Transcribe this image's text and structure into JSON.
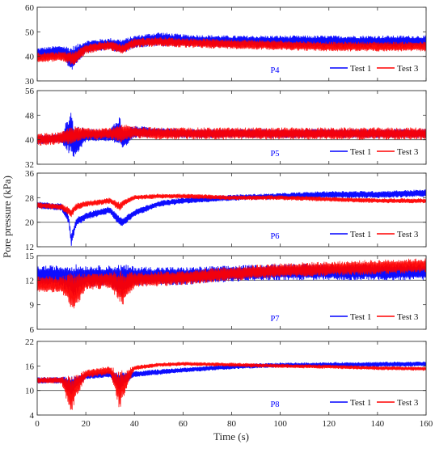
{
  "chart_data": [
    {
      "type": "line",
      "panel_label": "P4",
      "ylim": [
        30,
        60
      ],
      "yticks": [
        "30",
        "40",
        "50",
        "60"
      ],
      "reference_y": 40,
      "legend": [
        "Test 1",
        "Test 3"
      ],
      "legend_placement": "bottom-right",
      "series": [
        {
          "name": "Test 1",
          "color": "#0000ff",
          "x": [
            0,
            10,
            14,
            20,
            30,
            35,
            40,
            50,
            60,
            80,
            100,
            120,
            140,
            160
          ],
          "values": [
            41,
            42,
            39,
            44,
            45,
            44,
            46,
            47,
            46.5,
            46,
            46,
            46,
            46,
            46
          ],
          "band": [
            2.5,
            2.5,
            5,
            2.5,
            2.5,
            3,
            2.5,
            3,
            2.5,
            2.5,
            2.5,
            2.5,
            2.5,
            2.5
          ]
        },
        {
          "name": "Test 3",
          "color": "#ff0000",
          "x": [
            0,
            10,
            15,
            20,
            30,
            35,
            40,
            50,
            60,
            80,
            100,
            120,
            140,
            160
          ],
          "values": [
            39.5,
            40,
            39,
            43,
            44.5,
            43,
            45.5,
            46,
            45.5,
            45,
            44.5,
            44,
            44,
            44
          ],
          "band": [
            2,
            2,
            3,
            2,
            2,
            2,
            2,
            2,
            2,
            2,
            2,
            2,
            2,
            2
          ]
        }
      ]
    },
    {
      "type": "line",
      "panel_label": "P5",
      "ylim": [
        32,
        56
      ],
      "yticks": [
        "32",
        "40",
        "48",
        "56"
      ],
      "reference_y": 40,
      "legend": [
        "Test 1",
        "Test 3"
      ],
      "legend_placement": "bottom-right",
      "series": [
        {
          "name": "Test 1",
          "color": "#0000ff",
          "x": [
            0,
            10,
            14,
            15,
            20,
            30,
            34,
            35,
            40,
            50,
            60,
            80,
            100,
            120,
            140,
            160
          ],
          "values": [
            40,
            40.5,
            42,
            39,
            41.5,
            41.5,
            43,
            40,
            42.5,
            42.5,
            42,
            42,
            42,
            42,
            42,
            42
          ],
          "band": [
            1.5,
            1.5,
            8,
            6,
            2,
            2,
            5,
            4,
            2,
            1.5,
            1.5,
            1.5,
            1.5,
            1.5,
            1.5,
            1.5
          ]
        },
        {
          "name": "Test 3",
          "color": "#ff0000",
          "x": [
            0,
            10,
            14,
            20,
            30,
            35,
            40,
            50,
            60,
            80,
            100,
            120,
            140,
            160
          ],
          "values": [
            40,
            40.5,
            41.5,
            42,
            42,
            42,
            42.5,
            42,
            42,
            42,
            42,
            42,
            42,
            42
          ],
          "band": [
            2,
            2,
            3,
            2,
            2,
            3,
            2,
            2,
            2,
            2,
            2,
            2,
            2,
            2
          ]
        }
      ]
    },
    {
      "type": "line",
      "panel_label": "P6",
      "ylim": [
        12,
        36
      ],
      "yticks": [
        "12",
        "20",
        "28",
        "36"
      ],
      "reference_y": 20,
      "legend": [
        "Test 1",
        "Test 3"
      ],
      "legend_placement": "bottom-right",
      "series": [
        {
          "name": "Test 1",
          "color": "#0000ff",
          "x": [
            0,
            10,
            13,
            14,
            16,
            20,
            30,
            33,
            35,
            40,
            50,
            60,
            80,
            100,
            120,
            140,
            160
          ],
          "values": [
            25.5,
            25,
            21,
            14,
            20,
            22,
            24,
            21,
            20,
            23,
            26,
            27,
            28,
            28.5,
            29,
            29,
            29.5
          ],
          "band": [
            1.2,
            1.2,
            1.5,
            2,
            1.5,
            1.2,
            1.2,
            1.5,
            1.5,
            1.2,
            1,
            1,
            1,
            1,
            1.2,
            1.2,
            1.2
          ]
        },
        {
          "name": "Test 3",
          "color": "#ff0000",
          "x": [
            0,
            10,
            14,
            16,
            20,
            30,
            34,
            36,
            40,
            50,
            60,
            80,
            100,
            120,
            140,
            160
          ],
          "values": [
            25.5,
            25,
            23,
            25,
            26,
            27,
            25,
            26.5,
            28,
            28.5,
            28.5,
            28,
            28,
            27.5,
            27,
            27
          ],
          "band": [
            1,
            1,
            1.5,
            1.2,
            1,
            1,
            1.5,
            1,
            0.8,
            0.8,
            0.8,
            0.8,
            0.8,
            0.8,
            0.8,
            0.8
          ]
        }
      ]
    },
    {
      "type": "line",
      "panel_label": "P7",
      "ylim": [
        6,
        15
      ],
      "yticks": [
        "6",
        "9",
        "12",
        "15"
      ],
      "reference_y": 12,
      "legend": [
        "Test 1",
        "Test 3"
      ],
      "legend_placement": "bottom-right",
      "series": [
        {
          "name": "Test 1",
          "color": "#0000ff",
          "x": [
            0,
            10,
            15,
            20,
            30,
            35,
            40,
            60,
            80,
            100,
            120,
            140,
            160
          ],
          "values": [
            12.5,
            12.5,
            12,
            12.5,
            12.5,
            12,
            12.5,
            12.5,
            12.8,
            13,
            13,
            13,
            13
          ],
          "band": [
            1.3,
            1.3,
            2,
            1.3,
            1.3,
            2,
            1.2,
            1.1,
            1,
            1,
            1,
            1,
            1
          ]
        },
        {
          "name": "Test 3",
          "color": "#ff0000",
          "x": [
            0,
            10,
            15,
            20,
            30,
            35,
            40,
            60,
            80,
            100,
            120,
            140,
            160
          ],
          "values": [
            11.5,
            11.5,
            10.5,
            11.8,
            12,
            11,
            12,
            12.3,
            12.8,
            13.2,
            13.4,
            13.6,
            13.8
          ],
          "band": [
            1,
            1,
            2.5,
            1,
            1,
            2.2,
            1,
            0.9,
            0.9,
            0.9,
            0.9,
            0.9,
            0.9
          ]
        }
      ]
    },
    {
      "type": "line",
      "panel_label": "P8",
      "ylim": [
        4,
        22
      ],
      "yticks": [
        "4",
        "10",
        "16",
        "22"
      ],
      "reference_y": 10,
      "legend": [
        "Test 1",
        "Test 3"
      ],
      "legend_placement": "bottom-right",
      "series": [
        {
          "name": "Test 1",
          "color": "#0000ff",
          "x": [
            0,
            10,
            14,
            16,
            20,
            30,
            34,
            36,
            40,
            50,
            60,
            80,
            100,
            120,
            140,
            160
          ],
          "values": [
            12.5,
            12.5,
            11,
            12,
            13.5,
            14,
            12,
            13,
            14,
            14.5,
            15,
            15.8,
            16.2,
            16.3,
            16.4,
            16.5
          ],
          "band": [
            0.8,
            0.8,
            2.5,
            1.5,
            0.8,
            0.8,
            2.5,
            1.5,
            0.7,
            0.7,
            0.6,
            0.6,
            0.6,
            0.6,
            0.6,
            0.6
          ]
        },
        {
          "name": "Test 3",
          "color": "#ff0000",
          "x": [
            0,
            10,
            14,
            16,
            20,
            30,
            34,
            36,
            40,
            50,
            60,
            80,
            100,
            120,
            140,
            160
          ],
          "values": [
            12.5,
            12.5,
            9,
            11,
            14,
            15,
            10,
            12,
            15.5,
            16.3,
            16.5,
            16.3,
            16,
            15.8,
            15.5,
            15.3
          ],
          "band": [
            0.8,
            0.8,
            5,
            3,
            1,
            1,
            5,
            3,
            0.6,
            0.5,
            0.5,
            0.5,
            0.5,
            0.5,
            0.5,
            0.5
          ]
        }
      ]
    }
  ],
  "axes": {
    "xlabel": "Time (s)",
    "ylabel": "Pore pressure (kPa)",
    "xlim": [
      0,
      160
    ],
    "xticks": [
      "0",
      "20",
      "40",
      "60",
      "80",
      "100",
      "120",
      "140",
      "160"
    ]
  },
  "colors": {
    "test1": "#0000ff",
    "test3": "#ff0000",
    "panel_label": "#0000ff"
  }
}
